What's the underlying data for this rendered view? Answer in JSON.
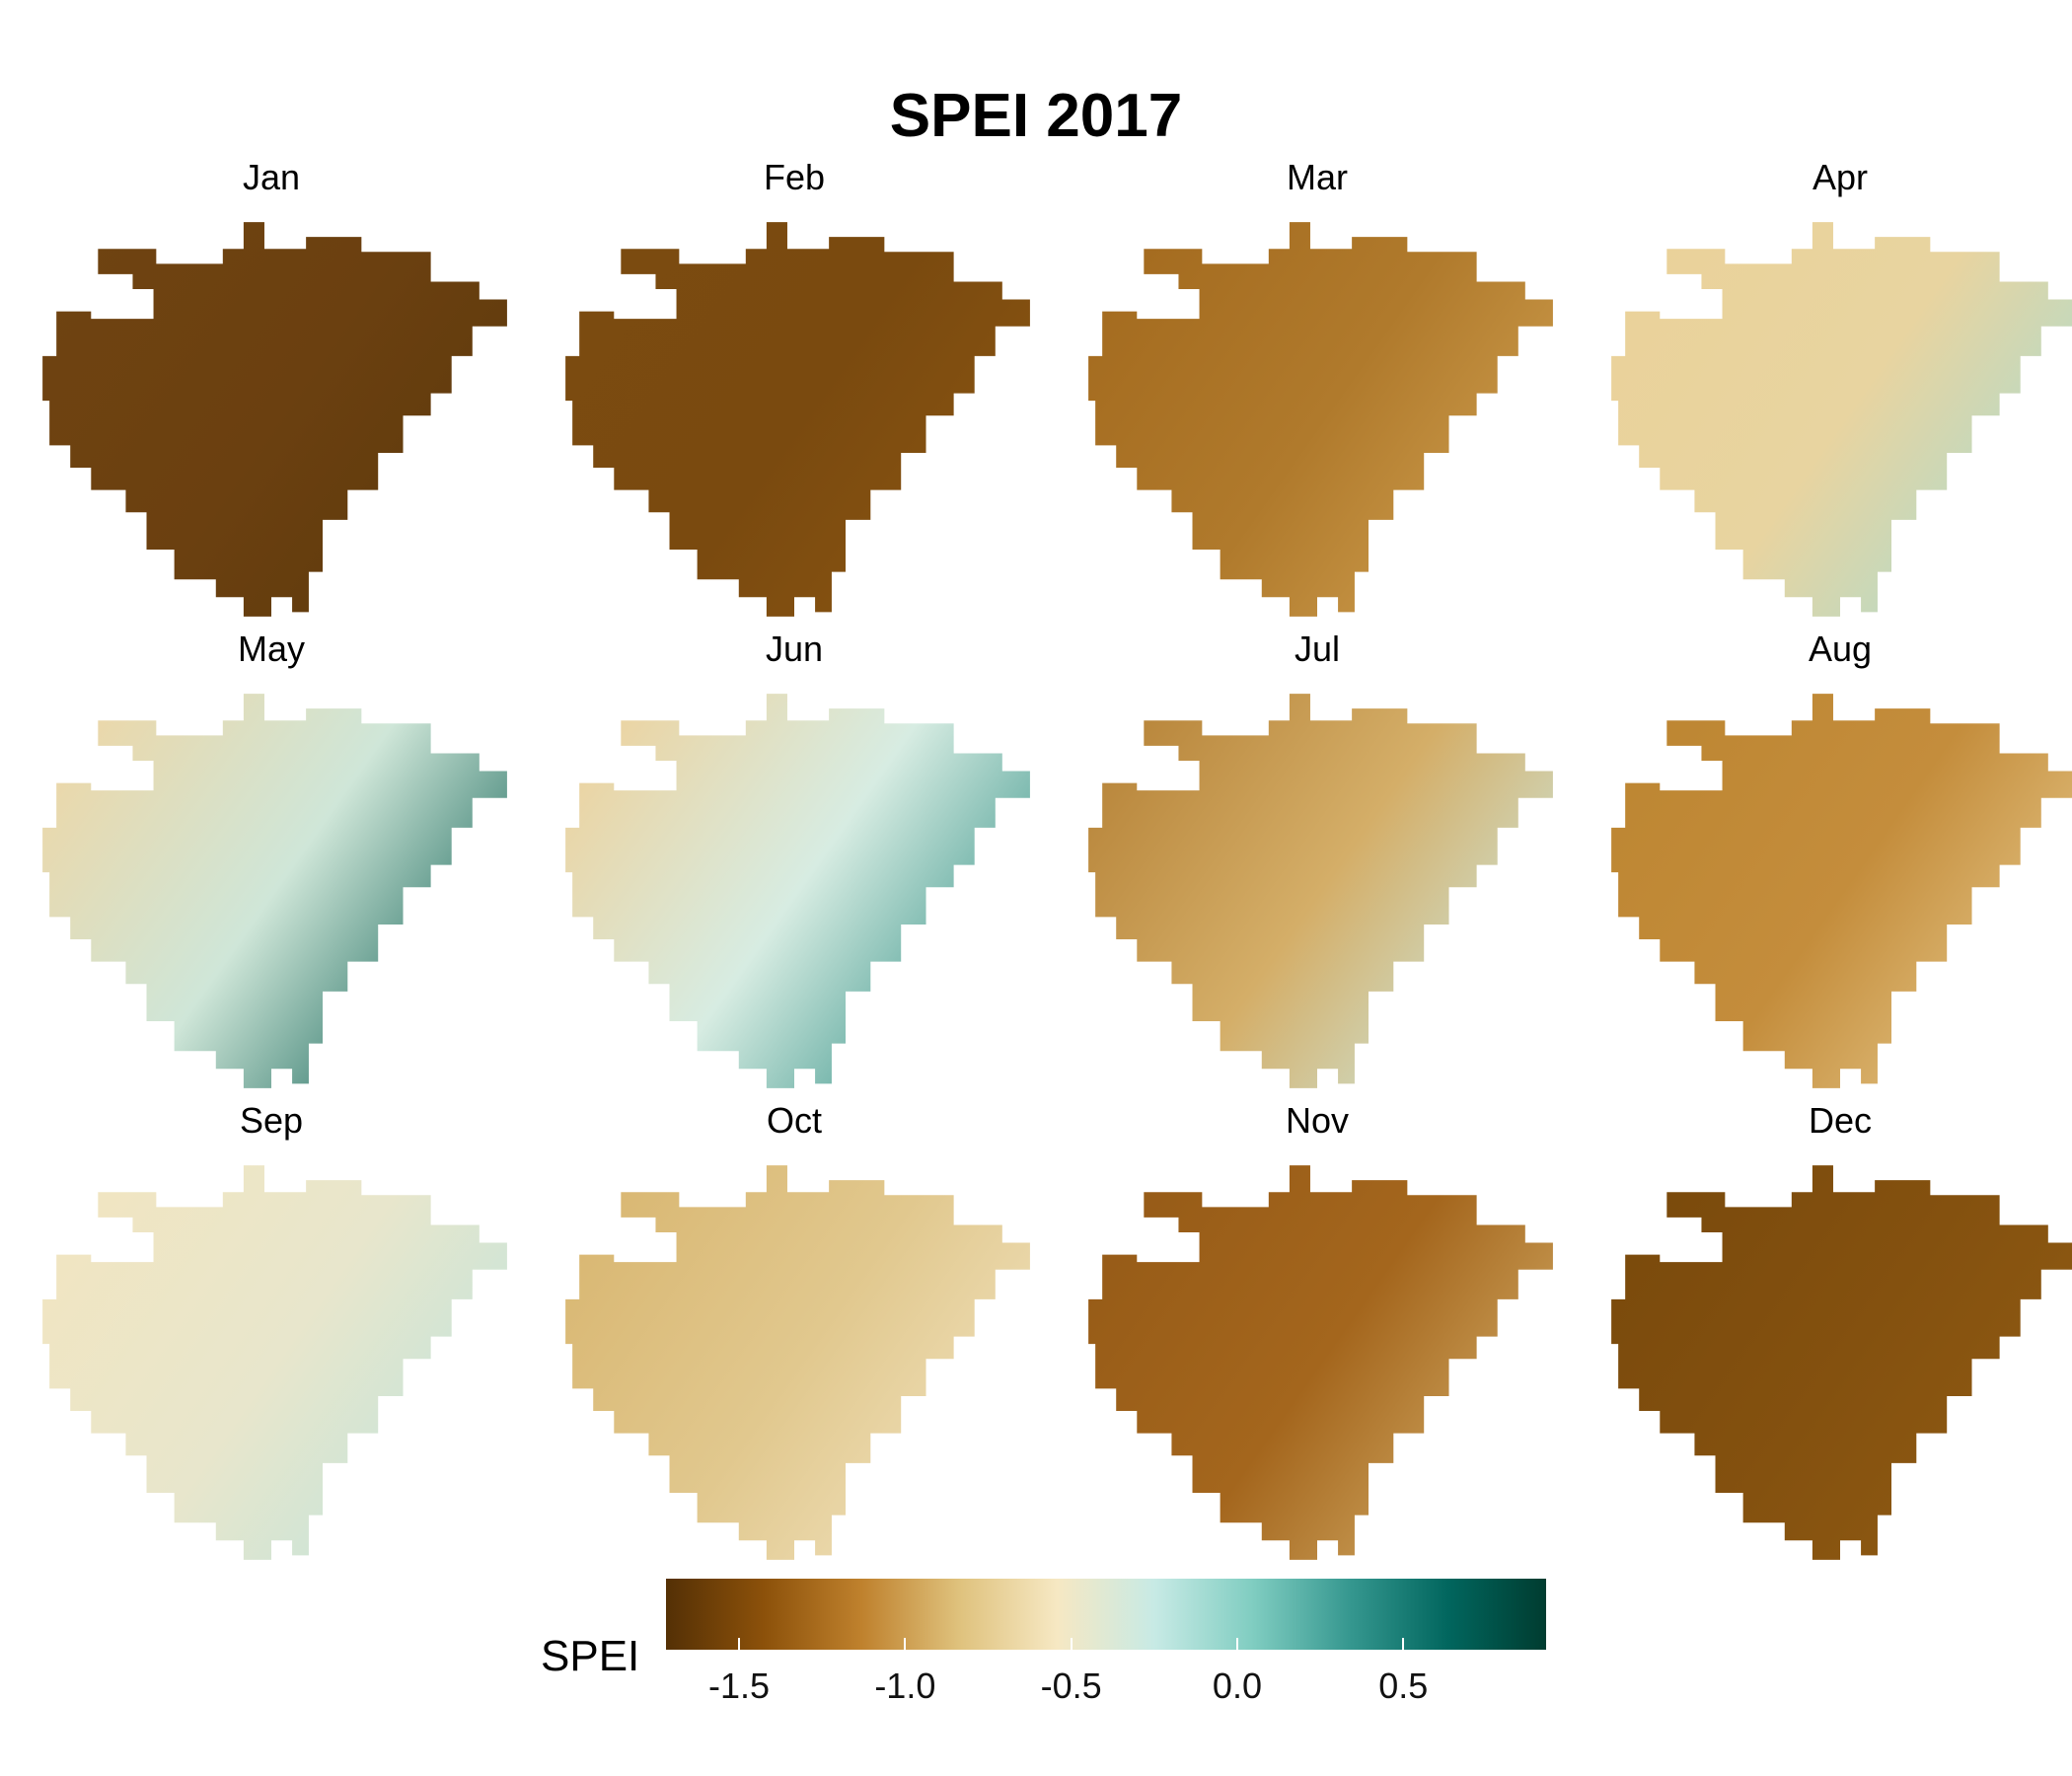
{
  "title": "SPEI 2017",
  "legend": {
    "title": "SPEI",
    "min": -1.72,
    "max": 0.93,
    "ticks": [
      {
        "value": -1.5,
        "label": "-1.5"
      },
      {
        "value": -1.0,
        "label": "-1.0"
      },
      {
        "value": -0.5,
        "label": "-0.5"
      },
      {
        "value": 0.0,
        "label": "0.0"
      },
      {
        "value": 0.5,
        "label": "0.5"
      }
    ],
    "colors": [
      "#543005",
      "#8c510a",
      "#bf812d",
      "#dfc27d",
      "#f6e8c3",
      "#c7eae5",
      "#80cdc1",
      "#35978f",
      "#01665e",
      "#003c30"
    ]
  },
  "panels": [
    {
      "label": "Jan",
      "fill": "#6b4010",
      "nw": "#6f4311",
      "se": "#5e3a0c"
    },
    {
      "label": "Feb",
      "fill": "#7a4a0f",
      "nw": "#7b4b10",
      "se": "#8a5512"
    },
    {
      "label": "Mar",
      "fill": "#b07a2c",
      "nw": "#a46b1f",
      "se": "#d0a050"
    },
    {
      "label": "Apr",
      "fill": "#e8d4a0",
      "nw": "#ead29a",
      "se": "#a8dcd2"
    },
    {
      "label": "May",
      "fill": "#cfe6d8",
      "nw": "#ecd7a8",
      "se": "#0a5e52"
    },
    {
      "label": "Jun",
      "fill": "#d7ece2",
      "nw": "#ecd3a0",
      "se": "#2e8e84"
    },
    {
      "label": "Jul",
      "fill": "#d4ae68",
      "nw": "#b8853a",
      "se": "#cdebe3"
    },
    {
      "label": "Aug",
      "fill": "#c48d3c",
      "nw": "#bd8632",
      "se": "#e7ca8c"
    },
    {
      "label": "Sep",
      "fill": "#e8e6cc",
      "nw": "#f1e5c1",
      "se": "#bfe4dc"
    },
    {
      "label": "Oct",
      "fill": "#e1c88e",
      "nw": "#d9b772",
      "se": "#f1e3bf"
    },
    {
      "label": "Nov",
      "fill": "#a4661d",
      "nw": "#965b17",
      "se": "#d6b06a"
    },
    {
      "label": "Dec",
      "fill": "#84510f",
      "nw": "#7a4a0c",
      "se": "#905b13"
    }
  ]
}
